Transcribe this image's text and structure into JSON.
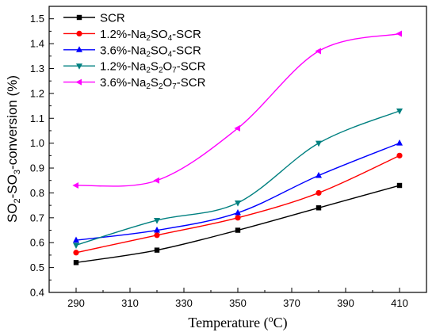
{
  "chart_data": {
    "type": "line",
    "xlabel": {
      "main": "Temperature (",
      "sup": "o",
      "unit": "C)"
    },
    "ylabel": {
      "p1": "SO",
      "s1": "2",
      "p2": "-SO",
      "s2": "3",
      "p3": "-conversion (%)"
    },
    "xlim": [
      280,
      420
    ],
    "ylim": [
      0.4,
      1.55
    ],
    "xticks": [
      "290",
      "310",
      "330",
      "350",
      "370",
      "390",
      "410"
    ],
    "yticks": [
      "0.4",
      "0.5",
      "0.6",
      "0.7",
      "0.8",
      "0.9",
      "1.0",
      "1.1",
      "1.2",
      "1.3",
      "1.4",
      "1.5"
    ],
    "x": [
      290,
      320,
      350,
      380,
      410
    ],
    "series": [
      {
        "name": "SCR",
        "legend": [
          [
            "SCR",
            ""
          ]
        ],
        "color": "#000000",
        "marker": "square",
        "values": [
          0.52,
          0.57,
          0.65,
          0.74,
          0.83
        ]
      },
      {
        "name": "1.2%-Na2SO4-SCR",
        "legend": [
          [
            "1.2%-Na",
            ""
          ],
          [
            "2",
            "sub"
          ],
          [
            "SO",
            ""
          ],
          [
            "4",
            "sub"
          ],
          [
            "-SCR",
            ""
          ]
        ],
        "color": "#ff0000",
        "marker": "circle",
        "values": [
          0.56,
          0.63,
          0.7,
          0.8,
          0.95
        ]
      },
      {
        "name": "3.6%-Na2SO4-SCR",
        "legend": [
          [
            "3.6%-Na",
            ""
          ],
          [
            "2",
            "sub"
          ],
          [
            "SO",
            ""
          ],
          [
            "4",
            "sub"
          ],
          [
            "-SCR",
            ""
          ]
        ],
        "color": "#0000ff",
        "marker": "triangle-up",
        "values": [
          0.61,
          0.65,
          0.72,
          0.87,
          1.0
        ]
      },
      {
        "name": "1.2%-Na2S2O7-SCR",
        "legend": [
          [
            "1.2%-Na",
            ""
          ],
          [
            "2",
            "sub"
          ],
          [
            "S",
            ""
          ],
          [
            "2",
            "sub"
          ],
          [
            "O",
            ""
          ],
          [
            "7",
            "sub"
          ],
          [
            "-SCR",
            ""
          ]
        ],
        "color": "#008080",
        "marker": "triangle-down",
        "values": [
          0.59,
          0.69,
          0.76,
          1.0,
          1.13
        ]
      },
      {
        "name": "3.6%-Na2S2O7-SCR",
        "legend": [
          [
            "3.6%-Na",
            ""
          ],
          [
            "2",
            "sub"
          ],
          [
            "S",
            ""
          ],
          [
            "2",
            "sub"
          ],
          [
            "O",
            ""
          ],
          [
            "7",
            "sub"
          ],
          [
            "-SCR",
            ""
          ]
        ],
        "color": "#ff00ff",
        "marker": "triangle-left",
        "values": [
          0.83,
          0.85,
          1.06,
          1.37,
          1.44
        ]
      }
    ],
    "legend_position": "top-left",
    "grid": false
  }
}
